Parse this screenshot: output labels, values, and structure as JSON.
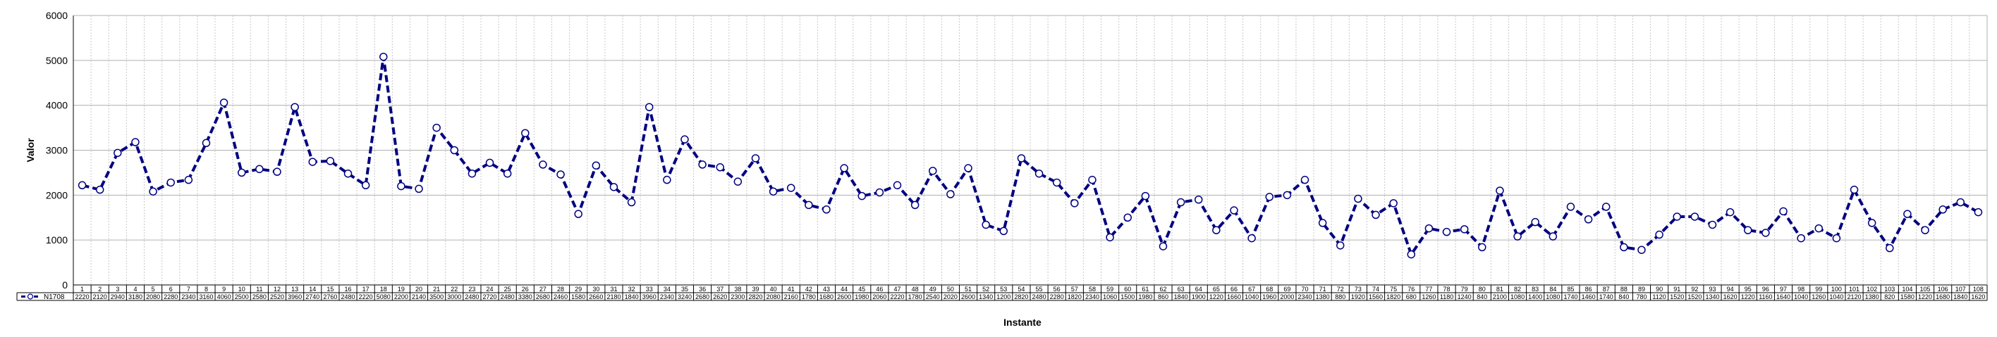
{
  "chart_data": {
    "type": "line",
    "title": "",
    "xlabel": "Instante",
    "ylabel": "Valor",
    "ylim": [
      0,
      6000
    ],
    "yticks": [
      0,
      1000,
      2000,
      3000,
      4000,
      5000,
      6000
    ],
    "grid": true,
    "legend": "data-table",
    "categories": [
      "1",
      "2",
      "3",
      "4",
      "5",
      "6",
      "7",
      "8",
      "9",
      "10",
      "11",
      "12",
      "13",
      "14",
      "15",
      "16",
      "17",
      "18",
      "19",
      "20",
      "21",
      "22",
      "23",
      "24",
      "25",
      "26",
      "27",
      "28",
      "29",
      "30",
      "31",
      "32",
      "33",
      "34",
      "35",
      "36",
      "37",
      "38",
      "39",
      "40",
      "41",
      "42",
      "43",
      "44",
      "45",
      "46",
      "47",
      "48",
      "49",
      "50",
      "51",
      "52",
      "53",
      "54",
      "55",
      "56",
      "57",
      "58",
      "59",
      "60",
      "61",
      "62",
      "63",
      "64",
      "65",
      "66",
      "67",
      "68",
      "69",
      "70",
      "71",
      "72",
      "73",
      "74",
      "75",
      "76",
      "77",
      "78",
      "79",
      "80",
      "81",
      "82",
      "83",
      "84",
      "85",
      "86",
      "87",
      "88",
      "89",
      "90",
      "91",
      "92",
      "93",
      "94",
      "95",
      "96",
      "97",
      "98",
      "99",
      "100",
      "101",
      "102",
      "103",
      "104",
      "105",
      "106",
      "107",
      "108"
    ],
    "series": [
      {
        "name": "N1708",
        "color": "#000080",
        "values": [
          2220,
          2120,
          2940,
          3180,
          2080,
          2280,
          2340,
          3160,
          4060,
          2500,
          2580,
          2520,
          3960,
          2740,
          2760,
          2480,
          2220,
          5080,
          2200,
          2140,
          3500,
          3000,
          2480,
          2720,
          2480,
          3380,
          2680,
          2460,
          1580,
          2660,
          2180,
          1840,
          3960,
          2340,
          3240,
          2680,
          2620,
          2300,
          2820,
          2080,
          2160,
          1780,
          1680,
          2600,
          1980,
          2060,
          2220,
          1780,
          2540,
          2020,
          2600,
          1340,
          1200,
          2820,
          2480,
          2280,
          1820,
          2340,
          1060,
          1500,
          1980,
          860,
          1840,
          1900,
          1220,
          1660,
          1040,
          1960,
          2000,
          2340,
          1380,
          880,
          1920,
          1560,
          1820,
          680,
          1260,
          1180,
          1240,
          840,
          2100,
          1080,
          1400,
          1080,
          1740,
          1460,
          1740,
          840,
          780,
          1120,
          1520,
          1520,
          1340,
          1620,
          1220,
          1160,
          1640,
          1040,
          1260,
          1040,
          2120,
          1380,
          820,
          1580,
          1220,
          1680,
          1840,
          1620
        ]
      }
    ]
  }
}
